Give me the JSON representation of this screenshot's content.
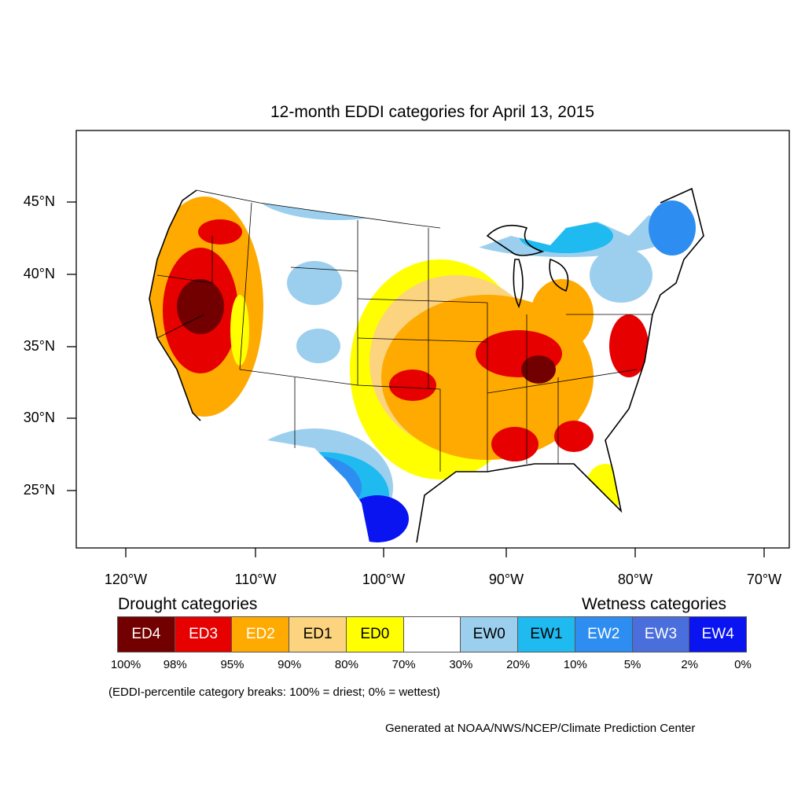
{
  "title": "12-month EDDI categories for April 13, 2015",
  "x_ticks": [
    "120°W",
    "110°W",
    "100°W",
    "90°W",
    "80°W",
    "70°W"
  ],
  "y_ticks": [
    "45°N",
    "40°N",
    "35°N",
    "30°N",
    "25°N"
  ],
  "legend": {
    "drought_header": "Drought categories",
    "wetness_header": "Wetness categories",
    "categories": [
      {
        "label": "ED4",
        "color": "#730000",
        "text_color": "#ffffff"
      },
      {
        "label": "ED3",
        "color": "#e60000",
        "text_color": "#ffffff"
      },
      {
        "label": "ED2",
        "color": "#ffaa00",
        "text_color": "#ffffff"
      },
      {
        "label": "ED1",
        "color": "#fcd37f",
        "text_color": "#000000"
      },
      {
        "label": "ED0",
        "color": "#ffff00",
        "text_color": "#000000"
      },
      {
        "label": "",
        "color": "#ffffff",
        "text_color": "#000000"
      },
      {
        "label": "EW0",
        "color": "#9ccfee",
        "text_color": "#000000"
      },
      {
        "label": "EW1",
        "color": "#1fbaf0",
        "text_color": "#000000"
      },
      {
        "label": "EW2",
        "color": "#2d8df0",
        "text_color": "#ffffff"
      },
      {
        "label": "EW3",
        "color": "#4a6fdc",
        "text_color": "#ffffff"
      },
      {
        "label": "EW4",
        "color": "#0a14f0",
        "text_color": "#ffffff"
      }
    ],
    "breaks": [
      "100%",
      "98%",
      "95%",
      "90%",
      "80%",
      "70%",
      "30%",
      "20%",
      "10%",
      "5%",
      "2%",
      "0%"
    ]
  },
  "note": "(EDDI-percentile category breaks: 100% = driest; 0% = wettest)",
  "credit": "Generated at NOAA/NWS/NCEP/Climate Prediction Center"
}
